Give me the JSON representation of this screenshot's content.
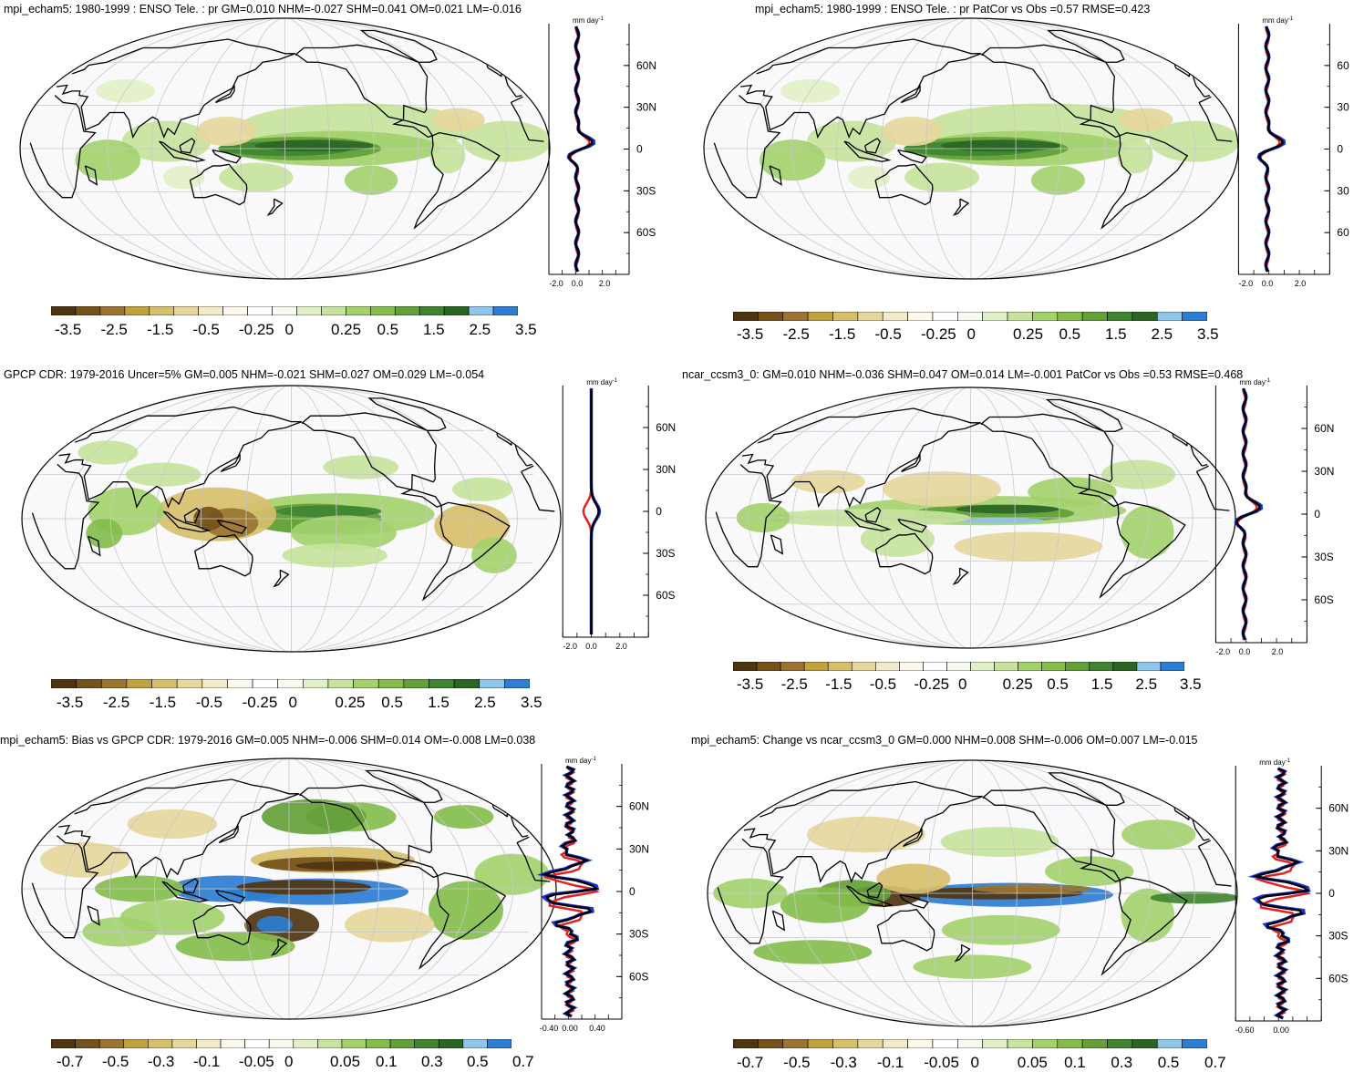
{
  "panels": [
    {
      "id": "p1",
      "title": "mpi_echam5: 1980-1999 : ENSO Tele. : pr GM=0.010 NHM=-0.027 SHM=0.041 OM=0.021 LM=-0.016",
      "unit": "mm day",
      "unit_sup": "-1",
      "lat_ticks": [
        "60N",
        "30N",
        "0",
        "30S",
        "60S"
      ],
      "x_ticks": [
        "-2.0",
        "0.0",
        "2.0"
      ],
      "colorbar_labels": [
        "-3.5",
        "-2.5",
        "-1.5",
        "-0.5",
        "-0.25",
        "0",
        "0.25",
        "0.5",
        "1.5",
        "2.5",
        "3.5"
      ],
      "pattern": "enso_model"
    },
    {
      "id": "p2",
      "title": "mpi_echam5: 1980-1999 : ENSO Tele. : pr PatCor vs Obs =0.57 RMSE=0.423",
      "unit": "mm day",
      "unit_sup": "-1",
      "lat_ticks": [
        "60",
        "30",
        "0",
        "30",
        "60"
      ],
      "x_ticks": [
        "-2.0",
        "0.0",
        "2.0"
      ],
      "colorbar_labels": [
        "-3.5",
        "-2.5",
        "-1.5",
        "-0.5",
        "-0.25",
        "0",
        "0.25",
        "0.5",
        "1.5",
        "2.5",
        "3.5"
      ],
      "pattern": "enso_model"
    },
    {
      "id": "p3",
      "title": "GPCP CDR: 1979-2016 Uncer=5% GM=0.005 NHM=-0.021 SHM=0.027 OM=0.029 LM=-0.054",
      "unit": "mm day",
      "unit_sup": "-1",
      "lat_ticks": [
        "60N",
        "30N",
        "0",
        "30S",
        "60S"
      ],
      "x_ticks": [
        "-2.0",
        "0.0",
        "2.0"
      ],
      "colorbar_labels": [
        "-3.5",
        "-2.5",
        "-1.5",
        "-0.5",
        "-0.25",
        "0",
        "0.25",
        "0.5",
        "1.5",
        "2.5",
        "3.5"
      ],
      "pattern": "enso_obs"
    },
    {
      "id": "p4",
      "title": "ncar_ccsm3_0: GM=0.010 NHM=-0.036 SHM=0.047 OM=0.014 LM=-0.001 PatCor vs Obs =0.53 RMSE=0.468",
      "unit": "mm day",
      "unit_sup": "-1",
      "lat_ticks": [
        "60N",
        "30N",
        "0",
        "30S",
        "60S"
      ],
      "x_ticks": [
        "-2.0",
        "0.0",
        "2.0"
      ],
      "colorbar_labels": [
        "-3.5",
        "-2.5",
        "-1.5",
        "-0.5",
        "-0.25",
        "0",
        "0.25",
        "0.5",
        "1.5",
        "2.5",
        "3.5"
      ],
      "pattern": "enso_ccsm"
    },
    {
      "id": "p5",
      "title": "mpi_echam5: Bias vs GPCP CDR: 1979-2016 GM=0.005 NHM=-0.006 SHM=0.014 OM=-0.008 LM=0.038",
      "unit": "mm day",
      "unit_sup": "-1",
      "lat_ticks": [
        "60N",
        "30N",
        "0",
        "30S",
        "60S"
      ],
      "x_ticks": [
        "-0.40",
        "0.00",
        "0.40"
      ],
      "colorbar_labels": [
        "-0.7",
        "-0.5",
        "-0.3",
        "-0.1",
        "-0.05",
        "0",
        "0.05",
        "0.1",
        "0.3",
        "0.5",
        "0.7"
      ],
      "pattern": "bias"
    },
    {
      "id": "p6",
      "title": "mpi_echam5: Change vs ncar_ccsm3_0 GM=0.000 NHM=0.008 SHM=-0.006 OM=0.007 LM=-0.015",
      "unit": "mm day",
      "unit_sup": "-1",
      "lat_ticks": [
        "60N",
        "30N",
        "0",
        "30S",
        "60S"
      ],
      "x_ticks": [
        "-0.60",
        "0.00"
      ],
      "colorbar_labels": [
        "-0.7",
        "-0.5",
        "-0.3",
        "-0.1",
        "-0.05",
        "0",
        "0.05",
        "0.1",
        "0.3",
        "0.5",
        "0.7"
      ],
      "pattern": "change"
    }
  ],
  "colors": {
    "palette": [
      "#4f3411",
      "#75511c",
      "#9a7430",
      "#c2a23f",
      "#d6bf6d",
      "#e6d79c",
      "#f2ebc9",
      "#fbf9ec",
      "#ffffff",
      "#f7fbef",
      "#e2f0c7",
      "#c7e39d",
      "#a3d16c",
      "#84bd4c",
      "#63a03a",
      "#3f8430",
      "#2a6524",
      "#8fc6ec",
      "#2d7dd2"
    ],
    "land_outline": "#000000",
    "profile_red": "#e6201e",
    "profile_blue": "#1c36d6",
    "profile_black": "#000000",
    "map_bg": "#f9f9fc",
    "grid": "#c8c8c8"
  }
}
